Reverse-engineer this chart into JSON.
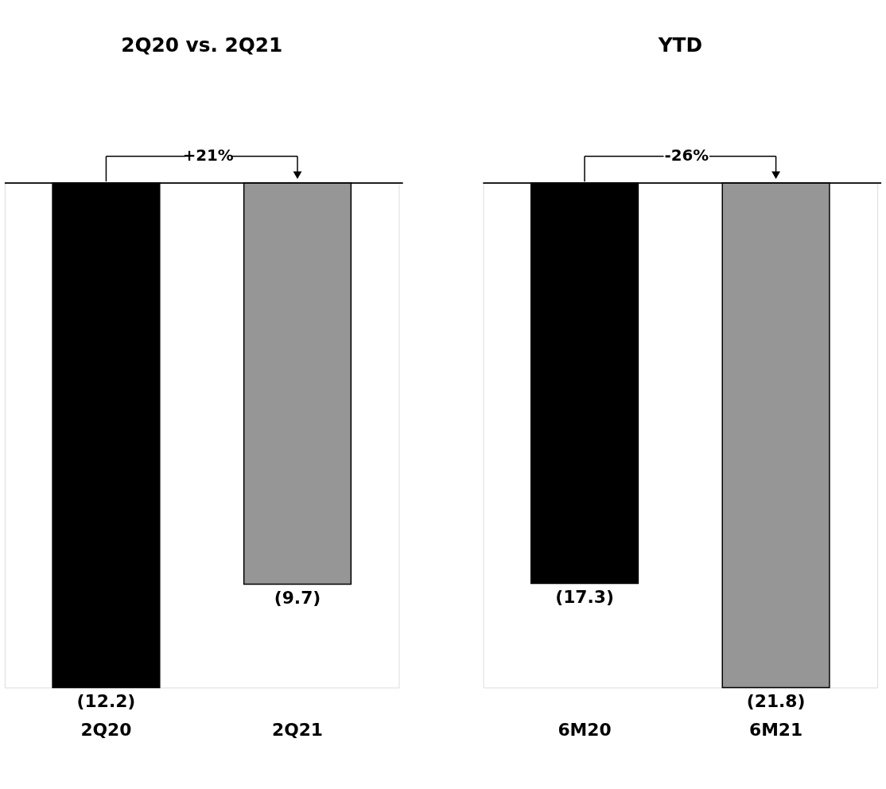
{
  "chart_data": [
    {
      "type": "bar",
      "title": "2Q20 vs. 2Q21",
      "categories": [
        "2Q20",
        "2Q21"
      ],
      "values": [
        -12.2,
        -9.7
      ],
      "colors": [
        "#000000",
        "#969696"
      ],
      "value_labels": [
        "(12.2)",
        "(9.7)"
      ],
      "annotations": [
        "+21%"
      ],
      "grid": false
    },
    {
      "type": "bar",
      "title": "YTD",
      "categories": [
        "6M20",
        "6M21"
      ],
      "values": [
        -17.3,
        -21.8
      ],
      "colors": [
        "#000000",
        "#969696"
      ],
      "value_labels": [
        "(17.3)",
        "(21.8)"
      ],
      "annotations": [
        "-26%"
      ],
      "grid": false
    }
  ]
}
